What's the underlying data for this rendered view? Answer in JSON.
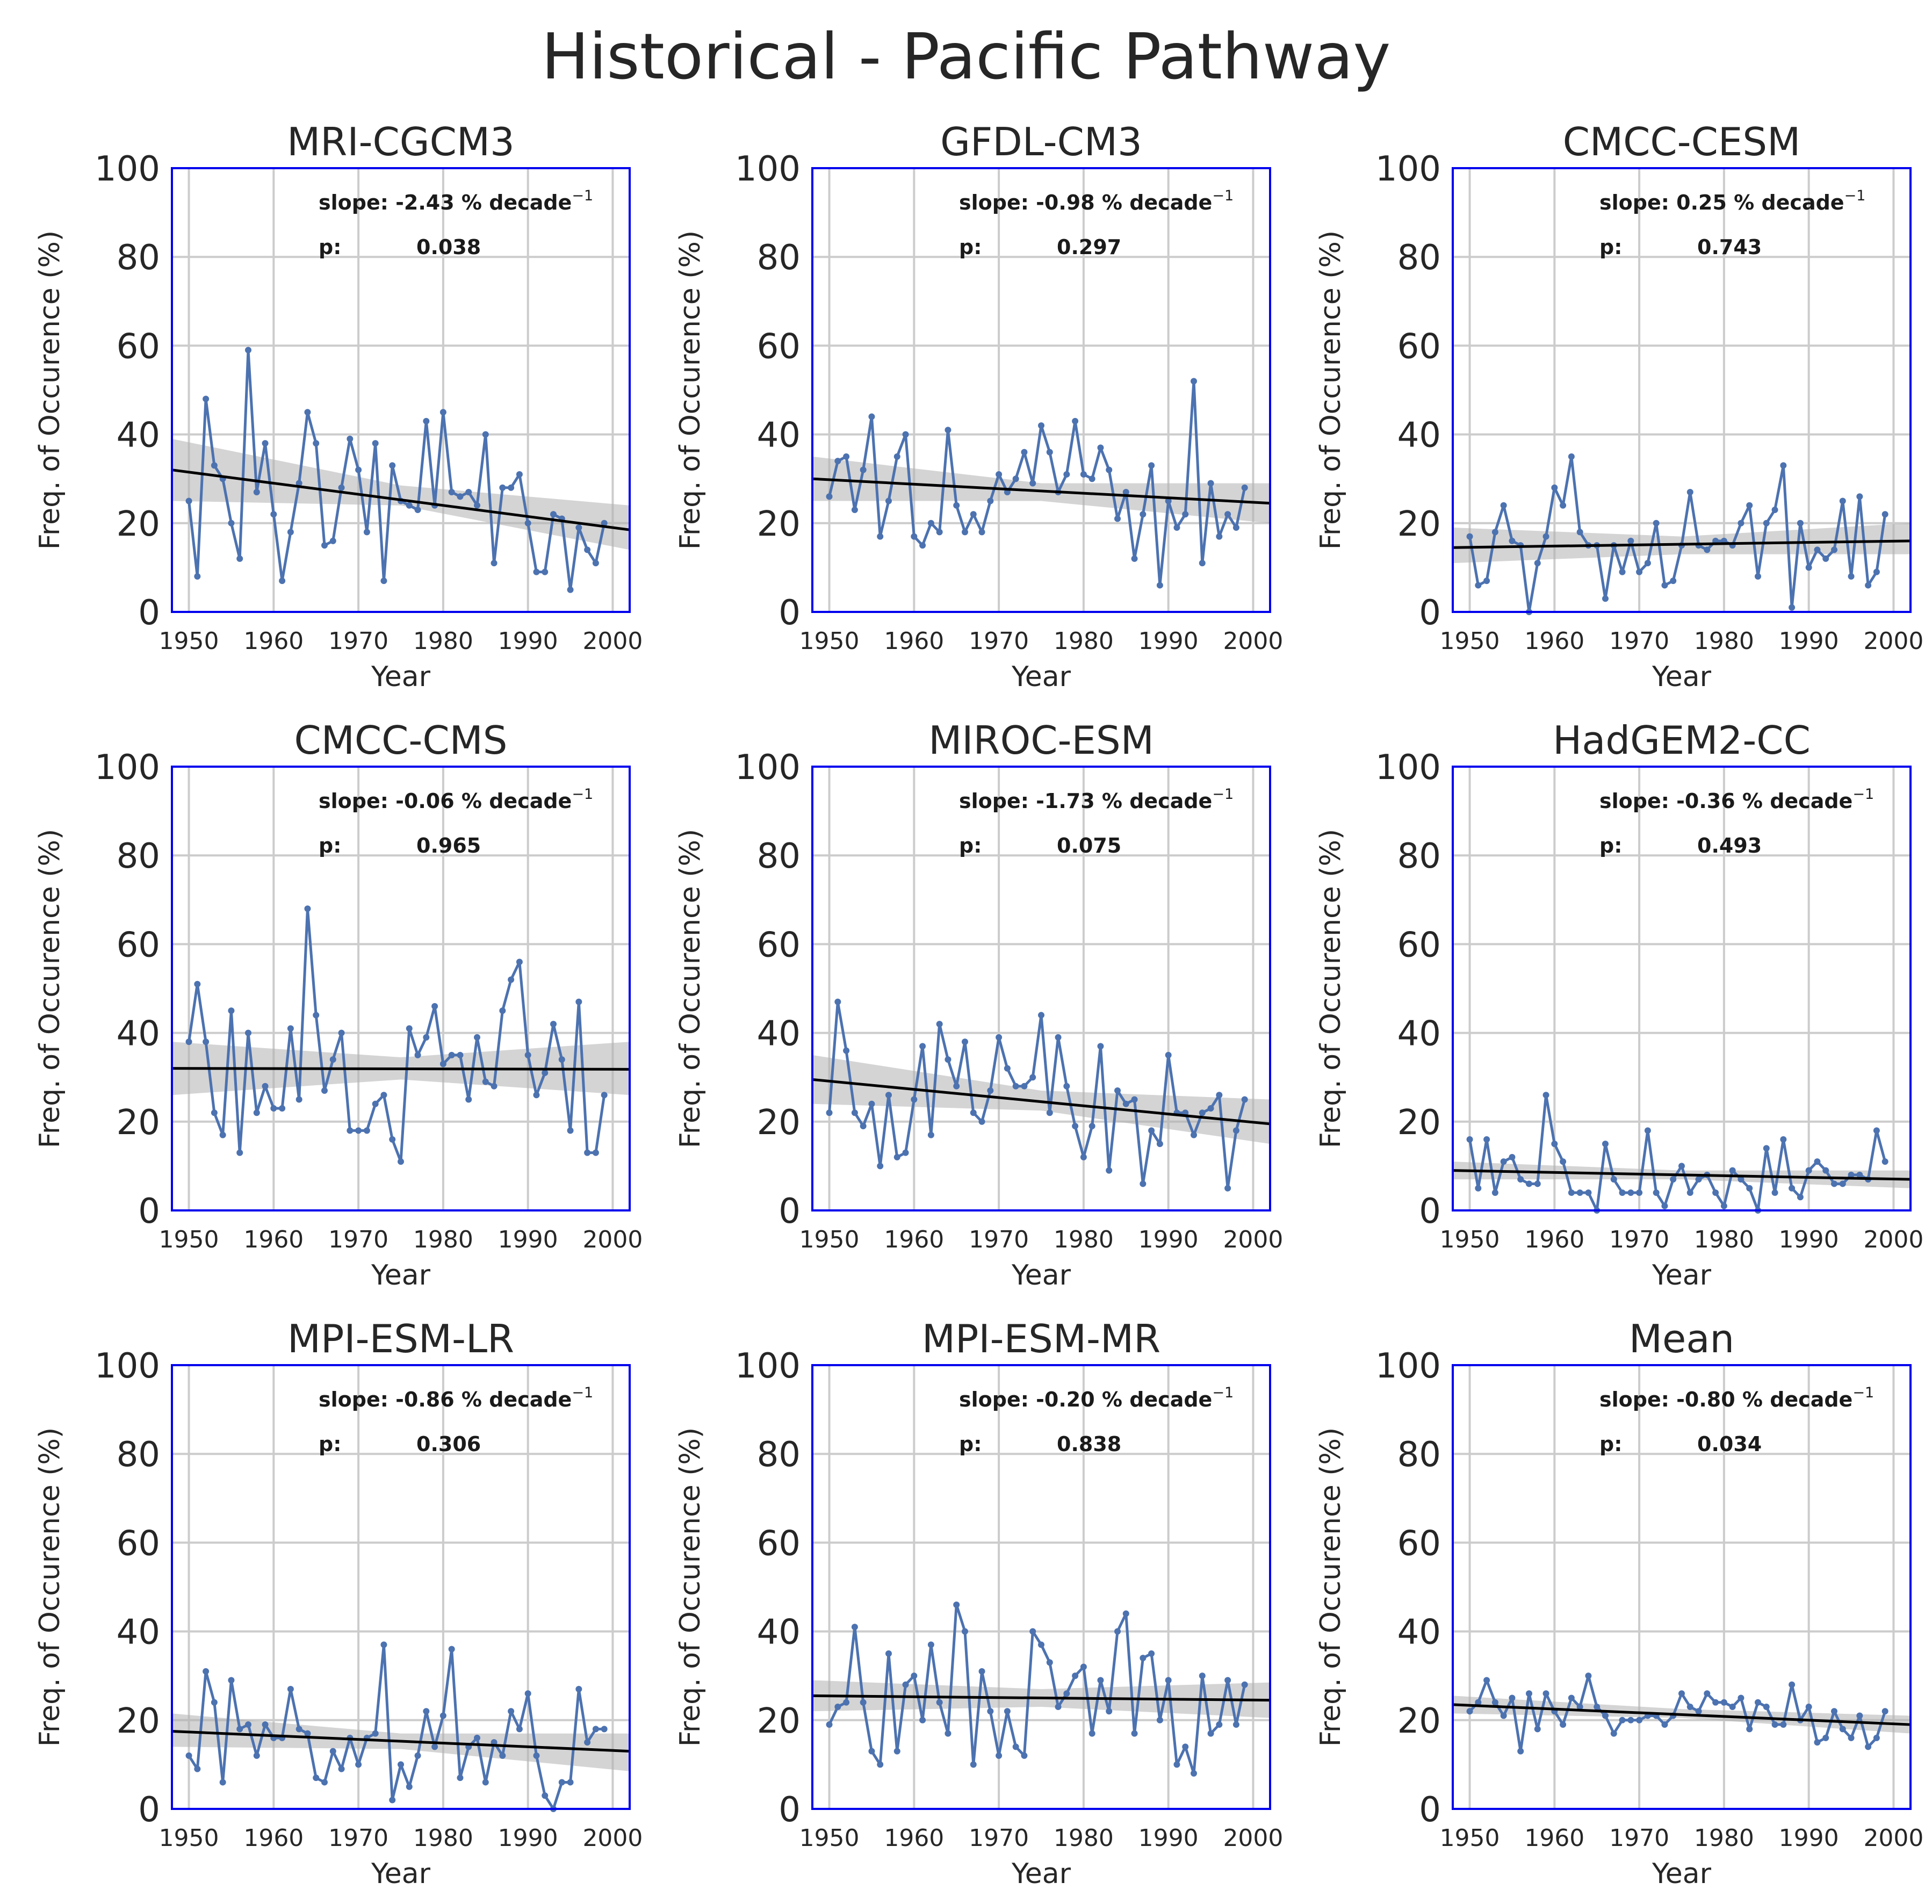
{
  "title": "Historical - Pacific Pathway",
  "chart_data": [
    {
      "type": "line",
      "title": "MRI-CGCM3",
      "xlabel": "Year",
      "ylabel": "Freq. of Occurence (%)",
      "xlim": [
        1948,
        2002
      ],
      "ylim": [
        0,
        100
      ],
      "xticks": [
        1950,
        1960,
        1970,
        1980,
        1990,
        2000
      ],
      "yticks": [
        0,
        20,
        40,
        60,
        80,
        100
      ],
      "stats": {
        "slope_label": "slope: -2.43 % decade",
        "superscript": "−1",
        "p_label": "p:",
        "p_value": "0.038"
      },
      "x": [
        1950,
        1951,
        1952,
        1953,
        1954,
        1955,
        1956,
        1957,
        1958,
        1959,
        1960,
        1961,
        1962,
        1963,
        1964,
        1965,
        1966,
        1967,
        1968,
        1969,
        1970,
        1971,
        1972,
        1973,
        1974,
        1975,
        1976,
        1977,
        1978,
        1979,
        1980,
        1981,
        1982,
        1983,
        1984,
        1985,
        1986,
        1987,
        1988,
        1989,
        1990,
        1991,
        1992,
        1993,
        1994,
        1995,
        1996,
        1997,
        1998,
        1999
      ],
      "values": [
        25,
        8,
        48,
        33,
        30,
        20,
        12,
        59,
        27,
        38,
        22,
        7,
        18,
        29,
        45,
        38,
        15,
        16,
        28,
        39,
        32,
        18,
        38,
        7,
        33,
        25,
        24,
        23,
        43,
        24,
        45,
        27,
        26,
        27,
        24,
        40,
        11,
        28,
        28,
        31,
        20,
        9,
        9,
        22,
        21,
        5,
        19,
        14,
        11,
        20
      ],
      "trend": {
        "start": 32,
        "end": 18.5
      },
      "ci": {
        "start": [
          25,
          39
        ],
        "end": [
          14,
          24
        ],
        "mid": [
          24,
          28.5
        ]
      }
    },
    {
      "type": "line",
      "title": "GFDL-CM3",
      "xlabel": "Year",
      "ylabel": "Freq. of Occurence (%)",
      "xlim": [
        1948,
        2002
      ],
      "ylim": [
        0,
        100
      ],
      "xticks": [
        1950,
        1960,
        1970,
        1980,
        1990,
        2000
      ],
      "yticks": [
        0,
        20,
        40,
        60,
        80,
        100
      ],
      "stats": {
        "slope_label": "slope: -0.98 % decade",
        "superscript": "−1",
        "p_label": "p:",
        "p_value": "0.297"
      },
      "x": [
        1950,
        1951,
        1952,
        1953,
        1954,
        1955,
        1956,
        1957,
        1958,
        1959,
        1960,
        1961,
        1962,
        1963,
        1964,
        1965,
        1966,
        1967,
        1968,
        1969,
        1970,
        1971,
        1972,
        1973,
        1974,
        1975,
        1976,
        1977,
        1978,
        1979,
        1980,
        1981,
        1982,
        1983,
        1984,
        1985,
        1986,
        1987,
        1988,
        1989,
        1990,
        1991,
        1992,
        1993,
        1994,
        1995,
        1996,
        1997,
        1998,
        1999
      ],
      "values": [
        26,
        34,
        35,
        23,
        32,
        44,
        17,
        25,
        35,
        40,
        17,
        15,
        20,
        18,
        41,
        24,
        18,
        22,
        18,
        25,
        31,
        27,
        30,
        36,
        29,
        42,
        36,
        27,
        31,
        43,
        31,
        30,
        37,
        32,
        21,
        27,
        12,
        22,
        33,
        6,
        25,
        19,
        22,
        52,
        11,
        29,
        17,
        22,
        19,
        28
      ],
      "trend": {
        "start": 30,
        "end": 24.5
      },
      "ci": {
        "start": [
          25,
          35
        ],
        "end": [
          20,
          29
        ],
        "mid": [
          25,
          29
        ]
      }
    },
    {
      "type": "line",
      "title": "CMCC-CESM",
      "xlabel": "Year",
      "ylabel": "Freq. of Occurence (%)",
      "xlim": [
        1948,
        2002
      ],
      "ylim": [
        0,
        100
      ],
      "xticks": [
        1950,
        1960,
        1970,
        1980,
        1990,
        2000
      ],
      "yticks": [
        0,
        20,
        40,
        60,
        80,
        100
      ],
      "stats": {
        "slope_label": "slope: 0.25 % decade",
        "superscript": "−1",
        "p_label": "p:",
        "p_value": "0.743"
      },
      "x": [
        1950,
        1951,
        1952,
        1953,
        1954,
        1955,
        1956,
        1957,
        1958,
        1959,
        1960,
        1961,
        1962,
        1963,
        1964,
        1965,
        1966,
        1967,
        1968,
        1969,
        1970,
        1971,
        1972,
        1973,
        1974,
        1975,
        1976,
        1977,
        1978,
        1979,
        1980,
        1981,
        1982,
        1983,
        1984,
        1985,
        1986,
        1987,
        1988,
        1989,
        1990,
        1991,
        1992,
        1993,
        1994,
        1995,
        1996,
        1997,
        1998,
        1999
      ],
      "values": [
        17,
        6,
        7,
        18,
        24,
        16,
        15,
        0,
        11,
        17,
        28,
        24,
        35,
        18,
        15,
        15,
        3,
        15,
        9,
        16,
        9,
        11,
        20,
        6,
        7,
        15,
        27,
        15,
        14,
        16,
        16,
        15,
        20,
        24,
        8,
        20,
        23,
        33,
        1,
        20,
        10,
        14,
        12,
        14,
        25,
        8,
        26,
        6,
        9,
        22
      ],
      "trend": {
        "start": 14.5,
        "end": 16
      },
      "ci": {
        "start": [
          11,
          19
        ],
        "end": [
          13,
          20
        ],
        "mid": [
          13,
          17
        ]
      }
    },
    {
      "type": "line",
      "title": "CMCC-CMS",
      "xlabel": "Year",
      "ylabel": "Freq. of Occurence (%)",
      "xlim": [
        1948,
        2002
      ],
      "ylim": [
        0,
        100
      ],
      "xticks": [
        1950,
        1960,
        1970,
        1980,
        1990,
        2000
      ],
      "yticks": [
        0,
        20,
        40,
        60,
        80,
        100
      ],
      "stats": {
        "slope_label": "slope: -0.06 % decade",
        "superscript": "−1",
        "p_label": "p:",
        "p_value": "0.965"
      },
      "x": [
        1950,
        1951,
        1952,
        1953,
        1954,
        1955,
        1956,
        1957,
        1958,
        1959,
        1960,
        1961,
        1962,
        1963,
        1964,
        1965,
        1966,
        1967,
        1968,
        1969,
        1970,
        1971,
        1972,
        1973,
        1974,
        1975,
        1976,
        1977,
        1978,
        1979,
        1980,
        1981,
        1982,
        1983,
        1984,
        1985,
        1986,
        1987,
        1988,
        1989,
        1990,
        1991,
        1992,
        1993,
        1994,
        1995,
        1996,
        1997,
        1998,
        1999
      ],
      "values": [
        38,
        51,
        38,
        22,
        17,
        45,
        13,
        40,
        22,
        28,
        23,
        23,
        41,
        25,
        68,
        44,
        27,
        34,
        40,
        18,
        18,
        18,
        24,
        26,
        16,
        11,
        41,
        35,
        39,
        46,
        33,
        35,
        35,
        25,
        39,
        29,
        28,
        45,
        52,
        56,
        35,
        26,
        31,
        42,
        34,
        18,
        47,
        13,
        13,
        26
      ],
      "trend": {
        "start": 32,
        "end": 31.8
      },
      "ci": {
        "start": [
          26,
          38
        ],
        "end": [
          26,
          38
        ],
        "mid": [
          29.5,
          34.5
        ]
      }
    },
    {
      "type": "line",
      "title": "MIROC-ESM",
      "xlabel": "Year",
      "ylabel": "Freq. of Occurence (%)",
      "xlim": [
        1948,
        2002
      ],
      "ylim": [
        0,
        100
      ],
      "xticks": [
        1950,
        1960,
        1970,
        1980,
        1990,
        2000
      ],
      "yticks": [
        0,
        20,
        40,
        60,
        80,
        100
      ],
      "stats": {
        "slope_label": "slope: -1.73 % decade",
        "superscript": "−1",
        "p_label": "p:",
        "p_value": "0.075"
      },
      "x": [
        1950,
        1951,
        1952,
        1953,
        1954,
        1955,
        1956,
        1957,
        1958,
        1959,
        1960,
        1961,
        1962,
        1963,
        1964,
        1965,
        1966,
        1967,
        1968,
        1969,
        1970,
        1971,
        1972,
        1973,
        1974,
        1975,
        1976,
        1977,
        1978,
        1979,
        1980,
        1981,
        1982,
        1983,
        1984,
        1985,
        1986,
        1987,
        1988,
        1989,
        1990,
        1991,
        1992,
        1993,
        1994,
        1995,
        1996,
        1997,
        1998,
        1999
      ],
      "values": [
        22,
        47,
        36,
        22,
        19,
        24,
        10,
        26,
        12,
        13,
        25,
        37,
        17,
        42,
        34,
        28,
        38,
        22,
        20,
        27,
        39,
        32,
        28,
        28,
        30,
        44,
        22,
        39,
        28,
        19,
        12,
        19,
        37,
        9,
        27,
        24,
        25,
        6,
        18,
        15,
        35,
        22,
        22,
        17,
        22,
        23,
        26,
        5,
        18,
        25
      ],
      "trend": {
        "start": 29.5,
        "end": 19.5
      },
      "ci": {
        "start": [
          24,
          35
        ],
        "end": [
          15,
          25
        ],
        "mid": [
          22.5,
          27
        ]
      }
    },
    {
      "type": "line",
      "title": "HadGEM2-CC",
      "xlabel": "Year",
      "ylabel": "Freq. of Occurence (%)",
      "xlim": [
        1948,
        2002
      ],
      "ylim": [
        0,
        100
      ],
      "xticks": [
        1950,
        1960,
        1970,
        1980,
        1990,
        2000
      ],
      "yticks": [
        0,
        20,
        40,
        60,
        80,
        100
      ],
      "stats": {
        "slope_label": "slope: -0.36 % decade",
        "superscript": "−1",
        "p_label": "p:",
        "p_value": "0.493"
      },
      "x": [
        1950,
        1951,
        1952,
        1953,
        1954,
        1955,
        1956,
        1957,
        1958,
        1959,
        1960,
        1961,
        1962,
        1963,
        1964,
        1965,
        1966,
        1967,
        1968,
        1969,
        1970,
        1971,
        1972,
        1973,
        1974,
        1975,
        1976,
        1977,
        1978,
        1979,
        1980,
        1981,
        1982,
        1983,
        1984,
        1985,
        1986,
        1987,
        1988,
        1989,
        1990,
        1991,
        1992,
        1993,
        1994,
        1995,
        1996,
        1997,
        1998,
        1999
      ],
      "values": [
        16,
        5,
        16,
        4,
        11,
        12,
        7,
        6,
        6,
        26,
        15,
        11,
        4,
        4,
        4,
        0,
        15,
        7,
        4,
        4,
        4,
        18,
        4,
        1,
        7,
        10,
        4,
        7,
        8,
        4,
        1,
        9,
        7,
        5,
        0,
        14,
        4,
        16,
        5,
        3,
        9,
        11,
        9,
        6,
        6,
        8,
        8,
        7,
        18,
        11
      ],
      "trend": {
        "start": 9,
        "end": 7
      },
      "ci": {
        "start": [
          7,
          11
        ],
        "end": [
          5,
          9
        ],
        "mid": [
          7,
          9
        ]
      }
    },
    {
      "type": "line",
      "title": "MPI-ESM-LR",
      "xlabel": "Year",
      "ylabel": "Freq. of Occurence (%)",
      "xlim": [
        1948,
        2002
      ],
      "ylim": [
        0,
        100
      ],
      "xticks": [
        1950,
        1960,
        1970,
        1980,
        1990,
        2000
      ],
      "yticks": [
        0,
        20,
        40,
        60,
        80,
        100
      ],
      "stats": {
        "slope_label": "slope: -0.86 % decade",
        "superscript": "−1",
        "p_label": "p:",
        "p_value": "0.306"
      },
      "x": [
        1950,
        1951,
        1952,
        1953,
        1954,
        1955,
        1956,
        1957,
        1958,
        1959,
        1960,
        1961,
        1962,
        1963,
        1964,
        1965,
        1966,
        1967,
        1968,
        1969,
        1970,
        1971,
        1972,
        1973,
        1974,
        1975,
        1976,
        1977,
        1978,
        1979,
        1980,
        1981,
        1982,
        1983,
        1984,
        1985,
        1986,
        1987,
        1988,
        1989,
        1990,
        1991,
        1992,
        1993,
        1994,
        1995,
        1996,
        1997,
        1998,
        1999
      ],
      "values": [
        12,
        9,
        31,
        24,
        6,
        29,
        18,
        19,
        12,
        19,
        16,
        16,
        27,
        18,
        17,
        7,
        6,
        13,
        9,
        16,
        10,
        16,
        17,
        37,
        2,
        10,
        5,
        12,
        22,
        14,
        21,
        36,
        7,
        14,
        16,
        6,
        15,
        12,
        22,
        18,
        26,
        12,
        3,
        0,
        6,
        6,
        27,
        15,
        18,
        18
      ],
      "trend": {
        "start": 17.5,
        "end": 13
      },
      "ci": {
        "start": [
          14,
          21.5
        ],
        "end": [
          8.5,
          17
        ],
        "mid": [
          13.5,
          17
        ]
      }
    },
    {
      "type": "line",
      "title": "MPI-ESM-MR",
      "xlabel": "Year",
      "ylabel": "Freq. of Occurence (%)",
      "xlim": [
        1948,
        2002
      ],
      "ylim": [
        0,
        100
      ],
      "xticks": [
        1950,
        1960,
        1970,
        1980,
        1990,
        2000
      ],
      "yticks": [
        0,
        20,
        40,
        60,
        80,
        100
      ],
      "stats": {
        "slope_label": "slope: -0.20 % decade",
        "superscript": "−1",
        "p_label": "p:",
        "p_value": "0.838"
      },
      "x": [
        1950,
        1951,
        1952,
        1953,
        1954,
        1955,
        1956,
        1957,
        1958,
        1959,
        1960,
        1961,
        1962,
        1963,
        1964,
        1965,
        1966,
        1967,
        1968,
        1969,
        1970,
        1971,
        1972,
        1973,
        1974,
        1975,
        1976,
        1977,
        1978,
        1979,
        1980,
        1981,
        1982,
        1983,
        1984,
        1985,
        1986,
        1987,
        1988,
        1989,
        1990,
        1991,
        1992,
        1993,
        1994,
        1995,
        1996,
        1997,
        1998,
        1999
      ],
      "values": [
        19,
        23,
        24,
        41,
        24,
        13,
        10,
        35,
        13,
        28,
        30,
        20,
        37,
        24,
        17,
        46,
        40,
        10,
        31,
        22,
        12,
        22,
        14,
        12,
        40,
        37,
        33,
        23,
        26,
        30,
        32,
        17,
        29,
        22,
        40,
        44,
        17,
        34,
        35,
        20,
        29,
        10,
        14,
        8,
        30,
        17,
        19,
        29,
        19,
        28
      ],
      "trend": {
        "start": 25.5,
        "end": 24.5
      },
      "ci": {
        "start": [
          22,
          29
        ],
        "end": [
          20.5,
          28.5
        ],
        "mid": [
          23,
          27
        ]
      }
    },
    {
      "type": "line",
      "title": "Mean",
      "xlabel": "Year",
      "ylabel": "Freq. of Occurence (%)",
      "xlim": [
        1948,
        2002
      ],
      "ylim": [
        0,
        100
      ],
      "xticks": [
        1950,
        1960,
        1970,
        1980,
        1990,
        2000
      ],
      "yticks": [
        0,
        20,
        40,
        60,
        80,
        100
      ],
      "stats": {
        "slope_label": "slope: -0.80 % decade",
        "superscript": "−1",
        "p_label": "p:",
        "p_value": "0.034"
      },
      "x": [
        1950,
        1951,
        1952,
        1953,
        1954,
        1955,
        1956,
        1957,
        1958,
        1959,
        1960,
        1961,
        1962,
        1963,
        1964,
        1965,
        1966,
        1967,
        1968,
        1969,
        1970,
        1971,
        1972,
        1973,
        1974,
        1975,
        1976,
        1977,
        1978,
        1979,
        1980,
        1981,
        1982,
        1983,
        1984,
        1985,
        1986,
        1987,
        1988,
        1989,
        1990,
        1991,
        1992,
        1993,
        1994,
        1995,
        1996,
        1997,
        1998,
        1999
      ],
      "values": [
        22,
        24,
        29,
        24,
        21,
        25,
        13,
        26,
        18,
        26,
        22,
        19,
        25,
        23,
        30,
        23,
        21,
        17,
        20,
        20,
        20,
        21,
        21,
        19,
        21,
        26,
        23,
        22,
        26,
        24,
        24,
        23,
        25,
        18,
        24,
        23,
        19,
        19,
        28,
        20,
        23,
        15,
        16,
        22,
        18,
        16,
        21,
        14,
        16,
        22
      ],
      "trend": {
        "start": 23.5,
        "end": 19
      },
      "ci": {
        "start": [
          21.5,
          25.5
        ],
        "end": [
          17,
          21
        ],
        "mid": [
          20.5,
          22.5
        ]
      }
    }
  ]
}
